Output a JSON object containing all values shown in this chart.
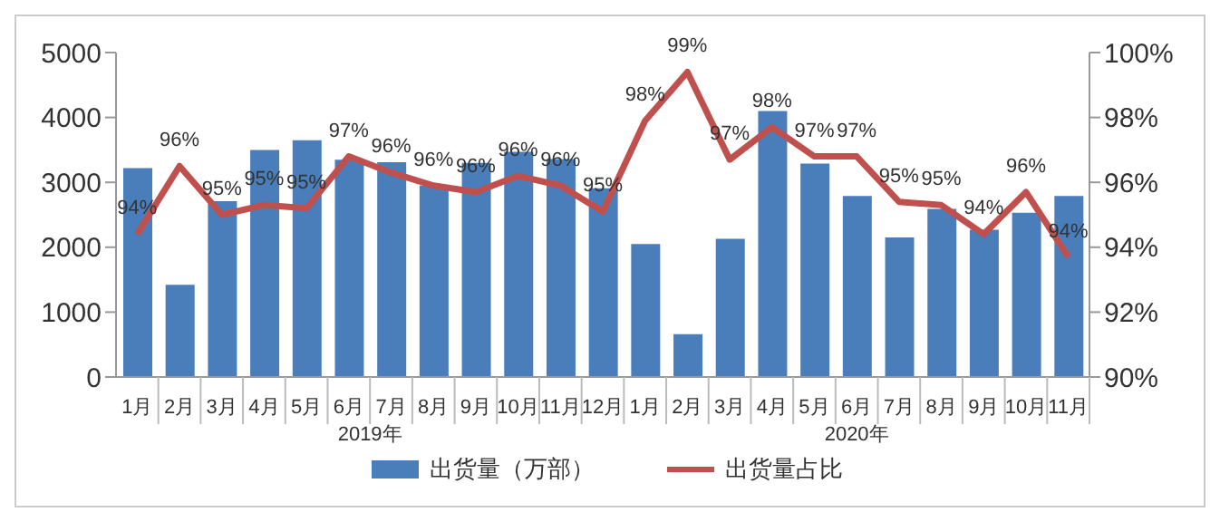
{
  "chart_data": {
    "type": "bar",
    "categories": [
      "1月",
      "2月",
      "3月",
      "4月",
      "5月",
      "6月",
      "7月",
      "8月",
      "9月",
      "10月",
      "11月",
      "12月",
      "1月",
      "2月",
      "3月",
      "4月",
      "5月",
      "6月",
      "7月",
      "8月",
      "9月",
      "10月",
      "11月"
    ],
    "annotations": [
      "2019年",
      "2020年"
    ],
    "series": [
      {
        "name": "出货量（万部）",
        "color": "#4a7ebb",
        "values": [
          3220,
          1420,
          2710,
          3500,
          3650,
          3350,
          3310,
          2950,
          3300,
          3470,
          3360,
          2910,
          2050,
          660,
          2130,
          4100,
          3290,
          2790,
          2150,
          2590,
          2270,
          2530,
          2790
        ]
      },
      {
        "name": "出货量占比",
        "type": "line",
        "axis": "y2",
        "color": "#c0504d",
        "values": [
          94.4,
          96.5,
          95.0,
          95.3,
          95.2,
          96.8,
          96.3,
          95.9,
          95.7,
          96.2,
          95.9,
          95.1,
          97.9,
          99.4,
          96.7,
          97.7,
          96.8,
          96.8,
          95.4,
          95.3,
          94.4,
          95.7,
          93.7
        ],
        "value_labels": [
          "94%",
          "96%",
          "95%",
          "95%",
          "95%",
          "97%",
          "96%",
          "96%",
          "96%",
          "96%",
          "96%",
          "95%",
          "98%",
          "99%",
          "97%",
          "98%",
          "97%",
          "97%",
          "95%",
          "95%",
          "94%",
          "96%",
          "94%"
        ]
      }
    ],
    "ylim": [
      0,
      5000
    ],
    "yticks": [
      0,
      1000,
      2000,
      3000,
      4000,
      5000
    ],
    "y2lim": [
      90,
      100
    ],
    "y2ticks": [
      {
        "value": 90,
        "label": "90%"
      },
      {
        "value": 92,
        "label": "92%"
      },
      {
        "value": 94,
        "label": "94%"
      },
      {
        "value": 96,
        "label": "96%"
      },
      {
        "value": 98,
        "label": "98%"
      },
      {
        "value": 100,
        "label": "100%"
      }
    ],
    "legend": "bottom",
    "grid": false,
    "marker": "none"
  }
}
